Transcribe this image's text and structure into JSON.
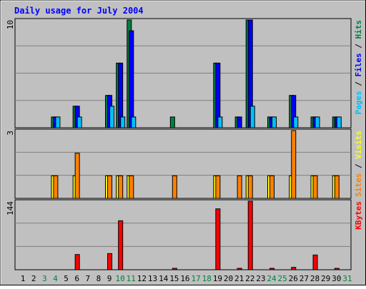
{
  "chart_data": [
    {
      "type": "bar",
      "title": "Daily usage for July 2004",
      "categories": [
        "1",
        "2",
        "3",
        "4",
        "5",
        "6",
        "7",
        "8",
        "9",
        "10",
        "11",
        "12",
        "13",
        "14",
        "15",
        "16",
        "17",
        "18",
        "19",
        "20",
        "21",
        "22",
        "23",
        "24",
        "25",
        "26",
        "27",
        "28",
        "29",
        "30",
        "31"
      ],
      "weekend_days": [
        "3",
        "4",
        "10",
        "11",
        "17",
        "18",
        "24",
        "25",
        "31"
      ],
      "panels": [
        {
          "name": "hits",
          "ymax_label": "10",
          "ymax": 10,
          "label_parts": [
            {
              "text": "Pages",
              "color": "#00c0ff"
            },
            {
              "text": " / ",
              "color": "#000000"
            },
            {
              "text": "Files",
              "color": "#0000ff"
            },
            {
              "text": " / ",
              "color": "#000000"
            },
            {
              "text": "Hits",
              "color": "#008040"
            }
          ],
          "series": [
            {
              "name": "Hits",
              "color": "#008040",
              "values": [
                0,
                0,
                0,
                1,
                0,
                2,
                0,
                0,
                3,
                6,
                10,
                0,
                0,
                0,
                1,
                0,
                0,
                0,
                6,
                0,
                1,
                10,
                0,
                1,
                0,
                3,
                0,
                1,
                0,
                1,
                0
              ]
            },
            {
              "name": "Files",
              "color": "#0000ff",
              "values": [
                0,
                0,
                0,
                1,
                0,
                2,
                0,
                0,
                3,
                6,
                9,
                0,
                0,
                0,
                0,
                0,
                0,
                0,
                6,
                0,
                1,
                10,
                0,
                1,
                0,
                3,
                0,
                1,
                0,
                1,
                0
              ]
            },
            {
              "name": "Pages",
              "color": "#00c0ff",
              "values": [
                0,
                0,
                0,
                1,
                0,
                1,
                0,
                0,
                2,
                1,
                1,
                0,
                0,
                0,
                0,
                0,
                0,
                0,
                1,
                0,
                0,
                2,
                0,
                1,
                0,
                1,
                0,
                1,
                0,
                1,
                0
              ]
            }
          ]
        },
        {
          "name": "visits",
          "ymax_label": "3",
          "ymax": 3,
          "label_parts": [
            {
              "text": "Sites",
              "color": "#ff8000"
            },
            {
              "text": " / ",
              "color": "#000000"
            },
            {
              "text": "Visits",
              "color": "#ffff00"
            }
          ],
          "series": [
            {
              "name": "Visits",
              "color": "#ffff00",
              "values": [
                0,
                0,
                0,
                1,
                0,
                1,
                0,
                0,
                1,
                1,
                1,
                0,
                0,
                0,
                0,
                0,
                0,
                0,
                1,
                0,
                0,
                1,
                0,
                1,
                0,
                1,
                0,
                1,
                0,
                1,
                0
              ]
            },
            {
              "name": "Sites",
              "color": "#ff8000",
              "values": [
                0,
                0,
                0,
                1,
                0,
                2,
                0,
                0,
                1,
                1,
                1,
                0,
                0,
                0,
                1,
                0,
                0,
                0,
                1,
                0,
                1,
                1,
                0,
                1,
                0,
                3,
                0,
                1,
                0,
                1,
                0
              ]
            }
          ]
        },
        {
          "name": "kbytes",
          "ymax_label": "144",
          "ymax": 144,
          "label_parts": [
            {
              "text": "KBytes",
              "color": "#ff0000"
            }
          ],
          "series": [
            {
              "name": "KBytes",
              "color": "#ff0000",
              "values": [
                0,
                0,
                0,
                0,
                0,
                32,
                0,
                0,
                34,
                103,
                0,
                0,
                0,
                0,
                2,
                0,
                0,
                0,
                128,
                0,
                2,
                144,
                0,
                3,
                0,
                5,
                0,
                31,
                0,
                3,
                0
              ]
            }
          ]
        }
      ]
    }
  ]
}
